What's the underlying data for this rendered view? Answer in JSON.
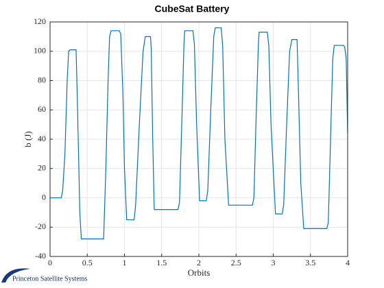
{
  "chart_data": {
    "type": "line",
    "title": "CubeSat Battery",
    "xlabel": "Orbits",
    "ylabel": "b (J)",
    "x": [
      0,
      0.15,
      0.17,
      0.2,
      0.23,
      0.25,
      0.27,
      0.35,
      0.37,
      0.4,
      0.42,
      0.72,
      0.75,
      0.78,
      0.8,
      0.82,
      0.93,
      0.95,
      0.98,
      1.0,
      1.03,
      1.13,
      1.15,
      1.2,
      1.25,
      1.28,
      1.35,
      1.36,
      1.38,
      1.4,
      1.72,
      1.74,
      1.77,
      1.8,
      1.81,
      1.92,
      1.94,
      1.97,
      2.01,
      2.1,
      2.12,
      2.16,
      2.2,
      2.22,
      2.3,
      2.32,
      2.35,
      2.4,
      2.72,
      2.74,
      2.77,
      2.8,
      2.81,
      2.92,
      2.94,
      2.97,
      3.03,
      3.12,
      3.14,
      3.18,
      3.22,
      3.25,
      3.32,
      3.34,
      3.37,
      3.41,
      3.72,
      3.74,
      3.77,
      3.8,
      3.82,
      3.94,
      3.96,
      3.98,
      4.0
    ],
    "series": [
      {
        "color": "#0072bd",
        "values": [
          0,
          0,
          5,
          30,
          80,
          100,
          101,
          101,
          60,
          -10,
          -28,
          -28,
          20,
          80,
          110,
          114,
          114,
          112,
          70,
          20,
          -15,
          -15,
          -5,
          50,
          100,
          110,
          110,
          101,
          40,
          -8,
          -8,
          -3,
          50,
          105,
          114,
          114,
          105,
          50,
          -2,
          -2,
          5,
          60,
          110,
          116,
          116,
          104,
          40,
          -5,
          -5,
          0,
          55,
          105,
          113,
          113,
          104,
          50,
          -11,
          -11,
          -5,
          50,
          100,
          108,
          108,
          70,
          10,
          -21,
          -21,
          -17,
          40,
          95,
          104,
          104,
          103,
          95,
          44
        ]
      }
    ],
    "xlim": [
      0,
      4
    ],
    "xticks": [
      0,
      0.5,
      1,
      1.5,
      2,
      2.5,
      3,
      3.5,
      4
    ],
    "ylim": [
      -40,
      120
    ],
    "yticks": [
      -40,
      -20,
      0,
      20,
      40,
      60,
      80,
      100,
      120
    ],
    "grid": true
  },
  "logo": {
    "text": "Princeton Satellite Systems"
  }
}
